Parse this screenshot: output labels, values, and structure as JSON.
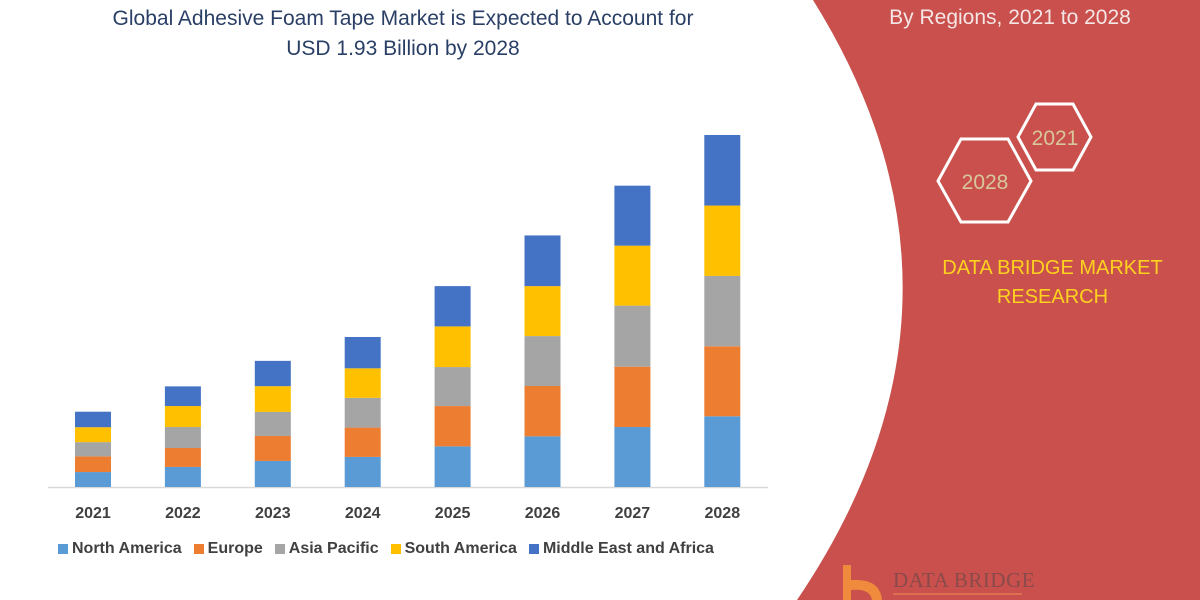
{
  "header": {
    "title_line1": "Global Adhesive Foam Tape Market is Expected to Account for",
    "title_line2": "USD 1.93 Billion by 2028"
  },
  "side_panel": {
    "subtitle": "By Regions, 2021 to 2028",
    "hex_start_year": "2021",
    "hex_end_year": "2028",
    "brand_line1": "DATA BRIDGE MARKET",
    "brand_line2": "RESEARCH",
    "logo_text": "DATA BRIDGE",
    "panel_color": "#c9504c"
  },
  "chart_data": {
    "type": "bar",
    "stacked": true,
    "title": "Global Adhesive Foam Tape Market is Expected to Account for USD 1.93 Billion by 2028",
    "xlabel": "",
    "ylabel": "",
    "grid": false,
    "legend_position": "bottom",
    "categories": [
      "2021",
      "2022",
      "2023",
      "2024",
      "2025",
      "2026",
      "2027",
      "2028"
    ],
    "series": [
      {
        "name": "North America",
        "color": "#5b9bd5",
        "values": [
          0.082,
          0.11,
          0.143,
          0.165,
          0.223,
          0.278,
          0.329,
          0.388
        ]
      },
      {
        "name": "Europe",
        "color": "#ed7d31",
        "values": [
          0.086,
          0.104,
          0.137,
          0.161,
          0.221,
          0.276,
          0.331,
          0.384
        ]
      },
      {
        "name": "Asia Pacific",
        "color": "#a5a5a5",
        "values": [
          0.078,
          0.115,
          0.132,
          0.163,
          0.214,
          0.274,
          0.335,
          0.386
        ]
      },
      {
        "name": "South America",
        "color": "#ffc000",
        "values": [
          0.082,
          0.115,
          0.141,
          0.162,
          0.223,
          0.274,
          0.329,
          0.386
        ]
      },
      {
        "name": "Middle East and Africa",
        "color": "#4472c4",
        "values": [
          0.085,
          0.108,
          0.139,
          0.172,
          0.221,
          0.278,
          0.329,
          0.387
        ]
      }
    ]
  }
}
